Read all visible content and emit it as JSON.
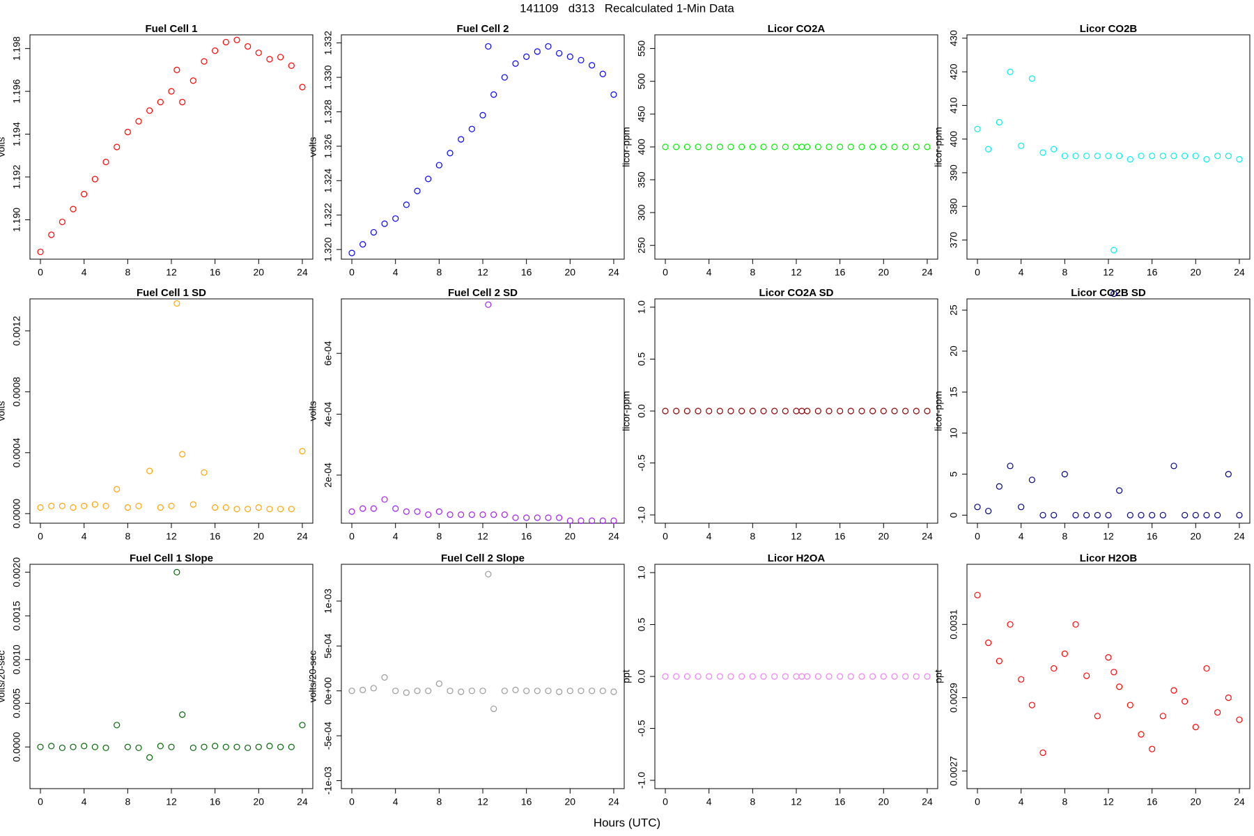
{
  "title": "141109   d313   Recalculated 1-Min Data",
  "xlabel": "Hours (UTC)",
  "chart_data": [
    {
      "type": "scatter",
      "title": "Fuel Cell 1",
      "ylabel": "volts",
      "color": "#ff0000",
      "x": [
        0,
        1,
        2,
        3,
        4,
        5,
        6,
        7,
        8,
        9,
        10,
        11,
        12,
        12.5,
        13,
        14,
        15,
        16,
        17,
        18,
        19,
        20,
        21,
        22,
        23,
        24
      ],
      "values": [
        1.1885,
        1.1893,
        1.1899,
        1.1905,
        1.1912,
        1.1919,
        1.1927,
        1.1934,
        1.1941,
        1.1946,
        1.1951,
        1.1955,
        1.196,
        1.197,
        1.1955,
        1.1965,
        1.1974,
        1.1979,
        1.1983,
        1.1984,
        1.1981,
        1.1978,
        1.1975,
        1.1976,
        1.1972,
        1.1962
      ],
      "xlim": [
        -0.96,
        24.96
      ],
      "xticks": [
        0,
        4,
        8,
        12,
        16,
        20,
        24
      ],
      "ylim": [
        1.18816,
        1.19864
      ],
      "yticks": [
        {
          "value": 1.19,
          "label": "1.190"
        },
        1.192,
        1.194,
        1.196,
        1.198
      ]
    },
    {
      "type": "scatter",
      "title": "Fuel Cell 2",
      "ylabel": "volts",
      "color": "#0000ff",
      "x": [
        0,
        1,
        2,
        3,
        4,
        5,
        6,
        7,
        8,
        9,
        10,
        11,
        12,
        12.5,
        13,
        14,
        15,
        16,
        17,
        18,
        19,
        20,
        21,
        22,
        23,
        24
      ],
      "values": [
        1.3198,
        1.3203,
        1.321,
        1.3215,
        1.3218,
        1.3226,
        1.3234,
        1.3241,
        1.3249,
        1.3256,
        1.3264,
        1.327,
        1.3278,
        1.3318,
        1.329,
        1.33,
        1.3308,
        1.3312,
        1.3315,
        1.3318,
        1.3314,
        1.3312,
        1.331,
        1.3307,
        1.3302,
        1.329
      ],
      "xlim": [
        -0.96,
        24.96
      ],
      "xticks": [
        0,
        4,
        8,
        12,
        16,
        20,
        24
      ],
      "ylim": [
        1.31944,
        1.33247
      ],
      "yticks": [
        {
          "value": 1.32,
          "label": "1.320"
        },
        1.322,
        1.324,
        1.326,
        1.328,
        {
          "value": 1.33,
          "label": "1.330"
        },
        1.332
      ]
    },
    {
      "type": "scatter",
      "title": "Licor CO2A",
      "ylabel": "licor-ppm",
      "color": "#00ee00",
      "x": [
        0,
        1,
        2,
        3,
        4,
        5,
        6,
        7,
        8,
        9,
        10,
        11,
        12,
        12.5,
        13,
        14,
        15,
        16,
        17,
        18,
        19,
        20,
        21,
        22,
        23,
        24
      ],
      "values": [
        400,
        400,
        400,
        400,
        400,
        400,
        400,
        400,
        400,
        400,
        400,
        400,
        400,
        400,
        400,
        400,
        400,
        400,
        400,
        400,
        400,
        400,
        400,
        400,
        400,
        400
      ],
      "xlim": [
        -0.96,
        24.96
      ],
      "xticks": [
        0,
        4,
        8,
        12,
        16,
        20,
        24
      ],
      "ylim": [
        229,
        570.8
      ],
      "yticks": [
        250,
        300,
        350,
        400,
        450,
        500,
        550
      ]
    },
    {
      "type": "scatter",
      "title": "Licor CO2B",
      "ylabel": "licor-ppm",
      "color": "#00eeee",
      "x": [
        0,
        1,
        2,
        3,
        4,
        5,
        6,
        7,
        8,
        9,
        10,
        11,
        12,
        12.5,
        13,
        14,
        15,
        16,
        17,
        18,
        19,
        20,
        21,
        22,
        23,
        24
      ],
      "values": [
        403,
        397,
        405,
        420,
        398,
        418,
        396,
        397,
        395,
        395,
        395,
        395,
        395,
        367,
        395,
        394,
        395,
        395,
        395,
        395,
        395,
        395,
        394,
        395,
        395,
        394
      ],
      "xlim": [
        -0.96,
        24.96
      ],
      "xticks": [
        0,
        4,
        8,
        12,
        16,
        20,
        24
      ],
      "ylim": [
        364.3,
        431
      ],
      "yticks": [
        370,
        380,
        390,
        400,
        410,
        420,
        430
      ]
    },
    {
      "type": "scatter",
      "title": "Fuel Cell 1 SD",
      "ylabel": "volts",
      "color": "#ffa500",
      "x": [
        0,
        1,
        2,
        3,
        4,
        5,
        6,
        7,
        8,
        9,
        10,
        11,
        12,
        12.5,
        13,
        14,
        15,
        16,
        17,
        18,
        19,
        20,
        21,
        22,
        23,
        24
      ],
      "values": [
        4e-05,
        5e-05,
        5e-05,
        4e-05,
        5e-05,
        6e-05,
        5e-05,
        0.00016,
        4e-05,
        5e-05,
        0.00028,
        4e-05,
        5e-05,
        0.00138,
        0.00039,
        6e-05,
        0.00027,
        4e-05,
        4e-05,
        3e-05,
        3e-05,
        4e-05,
        3e-05,
        3e-05,
        3e-05,
        0.00041
      ],
      "xlim": [
        -0.96,
        24.96
      ],
      "xticks": [
        0,
        4,
        8,
        12,
        16,
        20,
        24
      ],
      "ylim": [
        -6.3e-05,
        0.00141
      ],
      "yticks": [
        {
          "value": 0,
          "label": "0.0000"
        },
        0.0004,
        0.0008,
        0.0012
      ]
    },
    {
      "type": "scatter",
      "title": "Fuel Cell 2 SD",
      "ylabel": "volts",
      "color": "#a020f0",
      "x": [
        0,
        1,
        2,
        3,
        4,
        5,
        6,
        7,
        8,
        9,
        10,
        11,
        12,
        12.5,
        13,
        14,
        15,
        16,
        17,
        18,
        19,
        20,
        21,
        22,
        23,
        24
      ],
      "values": [
        8e-05,
        9e-05,
        9e-05,
        0.00012,
        9e-05,
        8e-05,
        8e-05,
        7e-05,
        8e-05,
        7e-05,
        7e-05,
        7e-05,
        7e-05,
        0.00076,
        7e-05,
        7e-05,
        6e-05,
        6e-05,
        6e-05,
        6e-05,
        6e-05,
        5e-05,
        5e-05,
        5e-05,
        5e-05,
        5e-05
      ],
      "xlim": [
        -0.96,
        24.96
      ],
      "xticks": [
        0,
        4,
        8,
        12,
        16,
        20,
        24
      ],
      "ylim": [
        4.2e-05,
        0.000779
      ],
      "yticks": [
        {
          "value": 0.0002,
          "label": "2e-04"
        },
        {
          "value": 0.0004,
          "label": "4e-04"
        },
        {
          "value": 0.0006,
          "label": "6e-04"
        }
      ]
    },
    {
      "type": "scatter",
      "title": "Licor CO2A SD",
      "ylabel": "licor-ppm",
      "color": "#8b0000",
      "x": [
        0,
        1,
        2,
        3,
        4,
        5,
        6,
        7,
        8,
        9,
        10,
        11,
        12,
        12.5,
        13,
        14,
        15,
        16,
        17,
        18,
        19,
        20,
        21,
        22,
        23,
        24
      ],
      "values": [
        0,
        0,
        0,
        0,
        0,
        0,
        0,
        0,
        0,
        0,
        0,
        0,
        0,
        0,
        0,
        0,
        0,
        0,
        0,
        0,
        0,
        0,
        0,
        0,
        0,
        0
      ],
      "xlim": [
        -0.96,
        24.96
      ],
      "xticks": [
        0,
        4,
        8,
        12,
        16,
        20,
        24
      ],
      "ylim": [
        -1.08,
        1.08
      ],
      "yticks": [
        {
          "value": -1,
          "label": "-1.0"
        },
        -0.5,
        {
          "value": 0,
          "label": "0.0"
        },
        0.5,
        {
          "value": 1,
          "label": "1.0"
        }
      ]
    },
    {
      "type": "scatter",
      "title": "Licor CO2B SD",
      "ylabel": "licor-ppm",
      "color": "#000080",
      "x": [
        0,
        1,
        2,
        3,
        4,
        5,
        6,
        7,
        8,
        9,
        10,
        11,
        12,
        12.5,
        13,
        14,
        15,
        16,
        17,
        18,
        19,
        20,
        21,
        22,
        23,
        24
      ],
      "values": [
        1,
        0.5,
        3.5,
        6,
        1,
        4.3,
        0,
        0,
        5,
        0,
        0,
        0,
        0,
        27,
        3,
        0,
        0,
        0,
        0,
        6,
        0,
        0,
        0,
        0,
        5,
        0
      ],
      "xlim": [
        -0.96,
        24.96
      ],
      "xticks": [
        0,
        4,
        8,
        12,
        16,
        20,
        24
      ],
      "ylim": [
        -0.98,
        26.37
      ],
      "yticks": [
        0,
        5,
        10,
        15,
        20,
        25
      ]
    },
    {
      "type": "scatter",
      "title": "Fuel Cell 1 Slope",
      "ylabel": "volts/20-sec",
      "color": "#006400",
      "x": [
        0,
        1,
        2,
        3,
        4,
        5,
        6,
        7,
        8,
        9,
        10,
        11,
        12,
        12.5,
        13,
        14,
        15,
        16,
        17,
        18,
        19,
        20,
        21,
        22,
        23,
        24
      ],
      "values": [
        0,
        1e-05,
        -1e-05,
        0,
        1e-05,
        0,
        -1e-05,
        0.00025,
        0,
        -1e-05,
        -0.00012,
        1e-05,
        0,
        0.002,
        0.00037,
        -1e-05,
        0,
        1e-05,
        0,
        0,
        -1e-05,
        0,
        1e-05,
        0,
        0,
        0.00025
      ],
      "xlim": [
        -0.96,
        24.96
      ],
      "xticks": [
        0,
        4,
        8,
        12,
        16,
        20,
        24
      ],
      "ylim": [
        -0.000477,
        0.00209
      ],
      "yticks": [
        {
          "value": 0,
          "label": "0.0000"
        },
        0.0005,
        {
          "value": 0.001,
          "label": "0.0010"
        },
        0.0015,
        {
          "value": 0.002,
          "label": "0.0020"
        }
      ]
    },
    {
      "type": "scatter",
      "title": "Fuel Cell 2 Slope",
      "ylabel": "volts/20-sec",
      "color": "#999999",
      "x": [
        0,
        1,
        2,
        3,
        4,
        5,
        6,
        7,
        8,
        9,
        10,
        11,
        12,
        12.5,
        13,
        14,
        15,
        16,
        17,
        18,
        19,
        20,
        21,
        22,
        23,
        24
      ],
      "values": [
        0,
        1e-05,
        3e-05,
        0.00015,
        0,
        -2e-05,
        0,
        0,
        8e-05,
        0,
        -1e-05,
        0,
        0,
        0.0013,
        -0.0002,
        0,
        1e-05,
        0,
        0,
        0,
        -1e-05,
        0,
        0,
        0,
        0,
        -1e-05
      ],
      "xlim": [
        -0.96,
        24.96
      ],
      "xticks": [
        0,
        4,
        8,
        12,
        16,
        20,
        24
      ],
      "ylim": [
        -0.001089,
        0.00141
      ],
      "yticks": [
        {
          "value": -0.001,
          "label": "-1e-03"
        },
        {
          "value": -0.0005,
          "label": "-5e-04"
        },
        {
          "value": 0,
          "label": "0e+00"
        },
        {
          "value": 0.0005,
          "label": "5e-04"
        },
        {
          "value": 0.001,
          "label": "1e-03"
        }
      ]
    },
    {
      "type": "scatter",
      "title": "Licor H2OA",
      "ylabel": "ppt",
      "color": "#ee82ee",
      "x": [
        0,
        1,
        2,
        3,
        4,
        5,
        6,
        7,
        8,
        9,
        10,
        11,
        12,
        12.5,
        13,
        14,
        15,
        16,
        17,
        18,
        19,
        20,
        21,
        22,
        23,
        24
      ],
      "values": [
        0,
        0,
        0,
        0,
        0,
        0,
        0,
        0,
        0,
        0,
        0,
        0,
        0,
        0,
        0,
        0,
        0,
        0,
        0,
        0,
        0,
        0,
        0,
        0,
        0,
        0
      ],
      "xlim": [
        -0.96,
        24.96
      ],
      "xticks": [
        0,
        4,
        8,
        12,
        16,
        20,
        24
      ],
      "ylim": [
        -1.08,
        1.08
      ],
      "yticks": [
        {
          "value": -1,
          "label": "-1.0"
        },
        -0.5,
        {
          "value": 0,
          "label": "0.0"
        },
        0.5,
        {
          "value": 1,
          "label": "1.0"
        }
      ]
    },
    {
      "type": "scatter",
      "title": "Licor H2OB",
      "ylabel": "ppt",
      "color": "#ff0000",
      "x": [
        0,
        1,
        2,
        3,
        4,
        5,
        6,
        7,
        8,
        9,
        10,
        11,
        12,
        12.5,
        13,
        14,
        15,
        16,
        17,
        18,
        19,
        20,
        21,
        22,
        23,
        24
      ],
      "values": [
        0.00318,
        0.00305,
        0.003,
        0.0031,
        0.00295,
        0.00288,
        0.00275,
        0.00298,
        0.00302,
        0.0031,
        0.00296,
        0.00285,
        0.00301,
        0.00297,
        0.00293,
        0.00288,
        0.0028,
        0.00276,
        0.00285,
        0.00292,
        0.00289,
        0.00282,
        0.00298,
        0.00286,
        0.0029,
        0.00284
      ],
      "xlim": [
        -0.96,
        24.96
      ],
      "xticks": [
        0,
        4,
        8,
        12,
        16,
        20,
        24
      ],
      "ylim": [
        0.002652,
        0.003264
      ],
      "yticks": [
        0.0027,
        0.0029,
        0.0031
      ]
    }
  ]
}
